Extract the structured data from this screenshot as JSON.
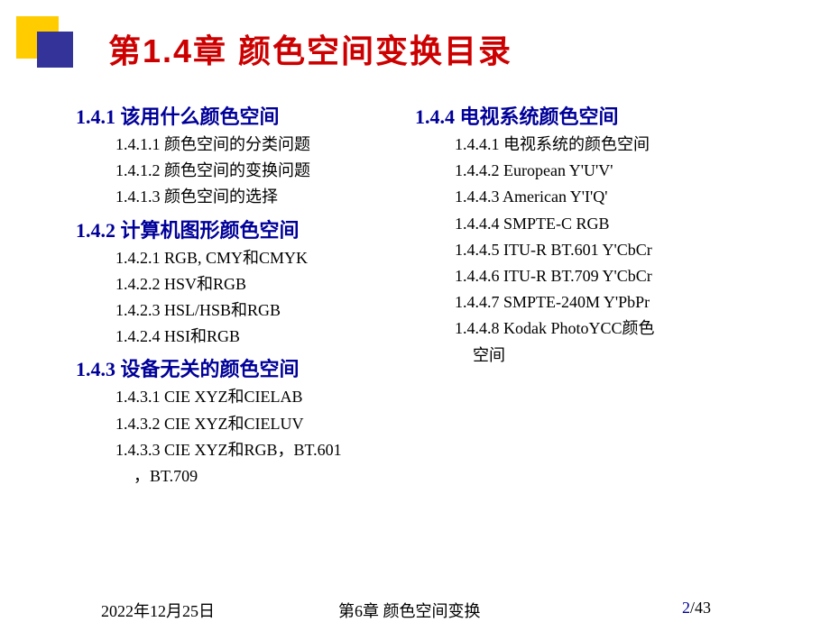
{
  "title": "第1.4章 颜色空间变换目录",
  "colors": {
    "title_color": "#cc0000",
    "section_color": "#000099",
    "text_color": "#000000",
    "yellow_block": "#ffcc00",
    "blue_block": "#333399",
    "background": "#ffffff",
    "page_number_color": "#000099"
  },
  "fonts": {
    "title_size": 36,
    "section_size": 22,
    "subitem_size": 18,
    "footer_size": 18
  },
  "left": {
    "s1": {
      "title": "1.4.1 该用什么颜色空间",
      "items": [
        "1.4.1.1 颜色空间的分类问题",
        "1.4.1.2 颜色空间的变换问题",
        "1.4.1.3 颜色空间的选择"
      ]
    },
    "s2": {
      "title": "1.4.2 计算机图形颜色空间",
      "items": [
        "1.4.2.1 RGB, CMY和CMYK",
        "1.4.2.2 HSV和RGB",
        "1.4.2.3 HSL/HSB和RGB",
        "1.4.2.4 HSI和RGB"
      ]
    },
    "s3": {
      "title": "1.4.3 设备无关的颜色空间",
      "items": [
        "1.4.3.1 CIE XYZ和CIELAB",
        "1.4.3.2 CIE XYZ和CIELUV",
        "1.4.3.3 CIE XYZ和RGB，BT.601"
      ],
      "cont": "，BT.709"
    }
  },
  "right": {
    "s4": {
      "title": "1.4.4 电视系统颜色空间",
      "items": [
        "1.4.4.1 电视系统的颜色空间",
        "1.4.4.2 European Y'U'V'",
        "1.4.4.3 American Y'I'Q'",
        "1.4.4.4 SMPTE-C RGB",
        "1.4.4.5 ITU-R BT.601 Y'CbCr",
        "1.4.4.6 ITU-R BT.709 Y'CbCr",
        "1.4.4.7 SMPTE-240M Y'PbPr",
        "1.4.4.8 Kodak PhotoYCC颜色"
      ],
      "cont": "空间"
    }
  },
  "footer": {
    "date": "2022年12月25日",
    "chapter": "第6章 颜色空间变换",
    "page_current": "2",
    "page_total": "/43"
  }
}
